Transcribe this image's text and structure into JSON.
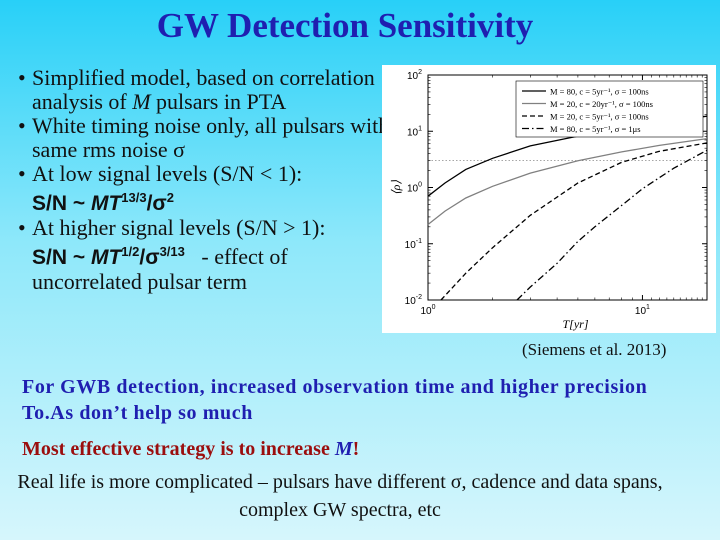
{
  "slide": {
    "title": "GW Detection Sensitivity",
    "bullets": [
      {
        "pre": "Simplified model, based on correlation analysis of ",
        "it": "M",
        "post": " pulsars in PTA"
      },
      {
        "text": "White timing noise only, all pulsars with same rms noise σ"
      },
      {
        "text": "At low signal levels (S/N < 1):",
        "eq_pre": "S/N ~ ",
        "eq_it": "MT",
        "eq_sup1": "13/3",
        "eq_mid": "/σ",
        "eq_sup2": "2"
      },
      {
        "text": "At higher signal levels (S/N > 1):",
        "eq_pre": "S/N ~ ",
        "eq_it": "MT",
        "eq_sup1": "1/2",
        "eq_mid": "/σ",
        "eq_sup2": "3/13",
        "eq_post": "   - effect of uncorrelated pulsar term"
      }
    ],
    "citation": "(Siemens et al. 2013)",
    "p1": "For GWB detection, increased observation time and higher precision To.As don’t help so much",
    "p2_pre": "Most effective strategy is to increase ",
    "p2_m": "M",
    "p2_post": "!",
    "p3": "Real life is more complicated – pulsars have different σ, cadence and data spans, complex GW spectra, etc"
  },
  "chart_data": {
    "type": "line",
    "xlabel": "T[yr]",
    "ylabel": "⟨ρ⟩",
    "x_scale": "log",
    "y_scale": "log",
    "xlim": [
      1,
      20
    ],
    "ylim": [
      0.01,
      100
    ],
    "x_ticks": [
      {
        "v": 1,
        "base": "10",
        "exp": "0"
      },
      {
        "v": 10,
        "base": "10",
        "exp": "1"
      }
    ],
    "y_ticks": [
      {
        "v": 0.01,
        "base": "10",
        "exp": "-2"
      },
      {
        "v": 0.1,
        "base": "10",
        "exp": "-1"
      },
      {
        "v": 1,
        "base": "10",
        "exp": "0"
      },
      {
        "v": 10,
        "base": "10",
        "exp": "1"
      },
      {
        "v": 100,
        "base": "10",
        "exp": "2"
      }
    ],
    "reference_line": {
      "y": 3,
      "style": "dotted"
    },
    "legend_position": "top-right",
    "series": [
      {
        "name": "M = 80, c = 5yr⁻¹, σ = 100ns",
        "style": "solid",
        "color": "#000000",
        "points": [
          [
            1.0,
            0.7
          ],
          [
            1.2,
            1.2
          ],
          [
            1.5,
            2.1
          ],
          [
            2,
            3.3
          ],
          [
            3,
            5.5
          ],
          [
            5,
            8.2
          ],
          [
            8,
            11.5
          ],
          [
            12,
            14.5
          ],
          [
            20,
            18.5
          ]
        ]
      },
      {
        "name": "M = 20, c = 20yr⁻¹, σ = 100ns",
        "style": "solid",
        "color": "#808080",
        "points": [
          [
            1.0,
            0.22
          ],
          [
            1.2,
            0.38
          ],
          [
            1.5,
            0.65
          ],
          [
            2,
            1.05
          ],
          [
            3,
            1.8
          ],
          [
            5,
            3.0
          ],
          [
            8,
            4.3
          ],
          [
            12,
            5.6
          ],
          [
            20,
            7.4
          ]
        ]
      },
      {
        "name": "M = 20, c = 5yr⁻¹, σ = 100ns",
        "style": "dashed",
        "color": "#000000",
        "points": [
          [
            1.15,
            0.01
          ],
          [
            1.5,
            0.03
          ],
          [
            2,
            0.085
          ],
          [
            3,
            0.32
          ],
          [
            5,
            1.2
          ],
          [
            8,
            2.8
          ],
          [
            12,
            4.4
          ],
          [
            20,
            6.2
          ]
        ]
      },
      {
        "name": "M = 80, c = 5yr⁻¹, σ = 1μs",
        "style": "dashdot",
        "color": "#000000",
        "points": [
          [
            2.6,
            0.01
          ],
          [
            3,
            0.017
          ],
          [
            4,
            0.045
          ],
          [
            5,
            0.11
          ],
          [
            6,
            0.2
          ],
          [
            8,
            0.48
          ],
          [
            10,
            0.95
          ],
          [
            14,
            2.2
          ],
          [
            20,
            4.6
          ]
        ]
      }
    ]
  }
}
